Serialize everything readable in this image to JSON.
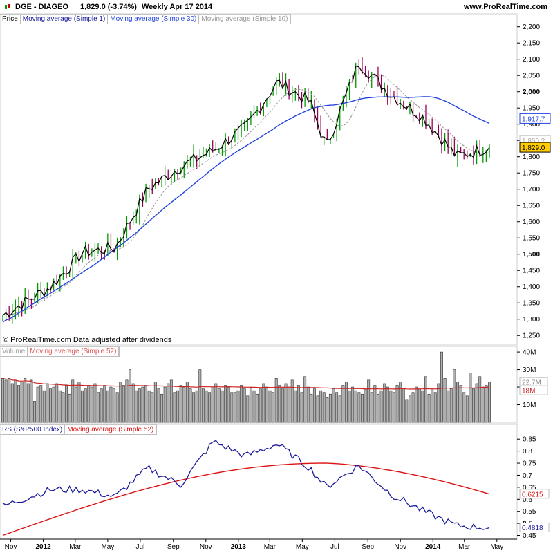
{
  "header": {
    "title": "DGE - DIAGEO",
    "last": "1,829.0 (-3.74%)",
    "period": "Weekly  Apr 17 2014",
    "url": "www.ProRealTime.com"
  },
  "legends": {
    "price": [
      "Price",
      "Moving average (Simple 1)",
      "Moving average (Simple 30)",
      "Moving average (Simple 10)"
    ],
    "volume": [
      "Volume",
      "Moving average (Simple 52)"
    ],
    "rs": [
      "RS (S&P500 Index)",
      "Moving average (Simple 52)"
    ]
  },
  "source_note": "© ProRealTime.com  Data adjusted after dividends",
  "colors": {
    "up_bar": "#009900",
    "down_bar": "#990055",
    "ma1": "#000000",
    "ma30": "#2244dd",
    "ma10": "#999999",
    "volume_bar": "#b0b0b0",
    "volume_ma": "#cc2222",
    "rs_line": "#1a1a99",
    "rs_ma": "#dd1111",
    "last_badge": "#ffcc00"
  },
  "chart_data": [
    {
      "type": "line",
      "name": "price",
      "x_labels": [
        "Nov",
        "2012",
        "Mar",
        "May",
        "Jul",
        "Sep",
        "Nov",
        "2013",
        "Mar",
        "May",
        "Jul",
        "Sep",
        "Nov",
        "2014",
        "Mar",
        "May"
      ],
      "y_ticks": [
        "2,200",
        "2,150",
        "2,100",
        "2,050",
        "2,000",
        "1,950",
        "1,900",
        "1,850",
        "1,800",
        "1,750",
        "1,700",
        "1,650",
        "1,600",
        "1,550",
        "1,500",
        "1,450",
        "1,400",
        "1,350",
        "1,300",
        "1,250"
      ],
      "y_tick_values": [
        2200,
        2150,
        2100,
        2050,
        2000,
        1950,
        1900,
        1850,
        1800,
        1750,
        1700,
        1650,
        1600,
        1550,
        1500,
        1450,
        1400,
        1350,
        1300,
        1250
      ],
      "ylim": [
        1225,
        2210
      ],
      "badges": [
        {
          "label": "1,917.7",
          "value": 1917.7,
          "kind": "ma30"
        },
        {
          "label": "1,850.2",
          "value": 1850.2,
          "kind": "ma10"
        },
        {
          "label": "1,829.0",
          "value": 1829.0,
          "kind": "last"
        }
      ],
      "key_points": [
        {
          "date": "2011-10",
          "close": 1310
        },
        {
          "date": "2012-01",
          "close": 1400
        },
        {
          "date": "2012-03",
          "close": 1505
        },
        {
          "date": "2012-05",
          "close": 1520
        },
        {
          "date": "2012-07",
          "close": 1700
        },
        {
          "date": "2012-09",
          "close": 1770
        },
        {
          "date": "2012-11",
          "close": 1820
        },
        {
          "date": "2013-01",
          "close": 1890
        },
        {
          "date": "2013-03",
          "close": 2030
        },
        {
          "date": "2013-05",
          "close": 1970
        },
        {
          "date": "2013-06",
          "close": 1830
        },
        {
          "date": "2013-08",
          "close": 2090
        },
        {
          "date": "2013-10",
          "close": 1990
        },
        {
          "date": "2013-12",
          "close": 1920
        },
        {
          "date": "2014-02",
          "close": 1800
        },
        {
          "date": "2014-04",
          "close": 1829
        }
      ],
      "ma30_range": [
        1270,
        1990
      ]
    },
    {
      "type": "bar",
      "name": "volume",
      "y_ticks": [
        "40M",
        "30M",
        "20M",
        "10M"
      ],
      "y_tick_values": [
        40,
        30,
        20,
        10
      ],
      "ylim": [
        0,
        42
      ],
      "unit": "M",
      "badges": [
        {
          "label": "22.7M",
          "value": 22.7,
          "kind": "volume"
        },
        {
          "label": "18M",
          "value": 18,
          "kind": "volume_ma"
        }
      ],
      "values": [
        25,
        24,
        25,
        22,
        24,
        21,
        23,
        25,
        22,
        24,
        12,
        20,
        21,
        18,
        22,
        19,
        20,
        22,
        18,
        17,
        21,
        16,
        24,
        20,
        23,
        18,
        19,
        21,
        20,
        22,
        17,
        19,
        21,
        18,
        20,
        19,
        17,
        23,
        21,
        24,
        30,
        22,
        18,
        19,
        20,
        21,
        18,
        17,
        23,
        19,
        16,
        20,
        22,
        24,
        17,
        18,
        21,
        20,
        23,
        19,
        17,
        18,
        30,
        19,
        18,
        17,
        20,
        22,
        19,
        18,
        21,
        20,
        17,
        17,
        18,
        21,
        19,
        15,
        20,
        18,
        16,
        19,
        22,
        20,
        18,
        17,
        25,
        21,
        19,
        22,
        20,
        24,
        18,
        21,
        17,
        26,
        20,
        16,
        19,
        15,
        18,
        17,
        14,
        16,
        19,
        17,
        15,
        21,
        23,
        18,
        20,
        18,
        17,
        16,
        19,
        24,
        17,
        21,
        16,
        18,
        22,
        20,
        18,
        17,
        21,
        23,
        19,
        13,
        15,
        17,
        20,
        19,
        18,
        26,
        16,
        19,
        17,
        22,
        40,
        25,
        18,
        19,
        30,
        23,
        21,
        17,
        15,
        28,
        19,
        22,
        26,
        20,
        21,
        23
      ]
    },
    {
      "type": "line",
      "name": "rs",
      "y_ticks": [
        "0.85",
        "0.8",
        "0.75",
        "0.7",
        "0.65",
        "0.6",
        "0.55",
        "0.5",
        "0.45"
      ],
      "y_tick_values": [
        0.85,
        0.8,
        0.75,
        0.7,
        0.65,
        0.6,
        0.55,
        0.5,
        0.45
      ],
      "ylim": [
        0.44,
        0.865
      ],
      "badges": [
        {
          "label": "0.6215",
          "value": 0.6215,
          "kind": "rs_ma"
        },
        {
          "label": "0.4818",
          "value": 0.4818,
          "kind": "rs"
        }
      ],
      "key_points": [
        {
          "date": "2011-10",
          "rs": 0.57
        },
        {
          "date": "2012-01",
          "rs": 0.64
        },
        {
          "date": "2012-03",
          "rs": 0.64
        },
        {
          "date": "2012-05",
          "rs": 0.61
        },
        {
          "date": "2012-07",
          "rs": 0.73
        },
        {
          "date": "2012-09",
          "rs": 0.66
        },
        {
          "date": "2012-11",
          "rs": 0.84
        },
        {
          "date": "2013-01",
          "rs": 0.78
        },
        {
          "date": "2013-03",
          "rs": 0.83
        },
        {
          "date": "2013-05",
          "rs": 0.73
        },
        {
          "date": "2013-06",
          "rs": 0.65
        },
        {
          "date": "2013-08",
          "rs": 0.74
        },
        {
          "date": "2013-10",
          "rs": 0.62
        },
        {
          "date": "2013-12",
          "rs": 0.55
        },
        {
          "date": "2014-02",
          "rs": 0.49
        },
        {
          "date": "2014-04",
          "rs": 0.4818
        }
      ],
      "ma52_range": [
        0.45,
        0.75
      ]
    }
  ]
}
